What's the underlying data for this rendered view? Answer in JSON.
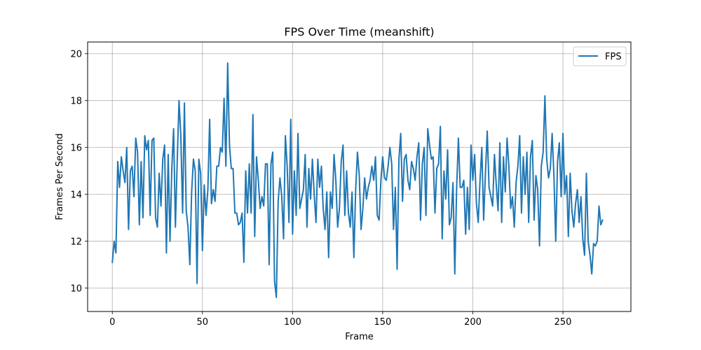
{
  "chart_data": {
    "type": "line",
    "title": "FPS Over Time (meanshift)",
    "xlabel": "Frame",
    "ylabel": "Frames Per Second",
    "xlim": [
      -13.7,
      287.7
    ],
    "ylim": [
      9.0,
      20.5
    ],
    "xticks": [
      0,
      50,
      100,
      150,
      200,
      250
    ],
    "yticks": [
      10,
      12,
      14,
      16,
      18,
      20
    ],
    "grid": true,
    "legend": "top-right",
    "series": [
      {
        "name": "FPS",
        "color": "#1f77b4",
        "x_start": 0,
        "x_step": 1,
        "values": [
          11.1,
          12.0,
          11.5,
          15.4,
          14.3,
          15.6,
          15.0,
          14.5,
          16.0,
          12.5,
          15.0,
          15.2,
          13.9,
          16.4,
          15.8,
          12.7,
          15.4,
          13.0,
          16.5,
          15.9,
          16.3,
          13.1,
          16.3,
          16.4,
          13.0,
          12.6,
          14.9,
          13.5,
          15.5,
          16.1,
          11.5,
          15.7,
          12.0,
          15.1,
          16.8,
          12.6,
          15.4,
          18.0,
          16.5,
          13.2,
          17.9,
          13.3,
          12.6,
          11.0,
          14.1,
          15.5,
          15.0,
          10.2,
          15.5,
          14.9,
          11.6,
          14.4,
          13.1,
          14.2,
          17.2,
          13.6,
          14.2,
          13.7,
          15.2,
          15.2,
          16.0,
          15.8,
          18.1,
          15.2,
          19.6,
          16.1,
          15.1,
          15.1,
          13.2,
          13.2,
          12.7,
          12.8,
          13.2,
          11.1,
          15.0,
          13.2,
          15.3,
          13.2,
          17.4,
          12.2,
          15.6,
          14.6,
          13.4,
          13.9,
          13.5,
          15.3,
          15.3,
          11.0,
          15.3,
          15.8,
          10.3,
          9.6,
          13.7,
          14.7,
          13.9,
          12.1,
          16.5,
          15.2,
          12.8,
          17.2,
          12.3,
          15.0,
          13.1,
          16.6,
          13.4,
          13.8,
          14.2,
          15.7,
          12.6,
          15.1,
          13.8,
          15.5,
          14.0,
          12.8,
          15.5,
          14.3,
          15.2,
          13.4,
          12.5,
          14.1,
          11.3,
          14.1,
          13.4,
          15.7,
          14.6,
          12.6,
          13.4,
          15.4,
          16.1,
          13.1,
          15.0,
          13.2,
          12.6,
          14.1,
          11.3,
          14.2,
          15.8,
          14.8,
          12.5,
          13.4,
          14.7,
          13.8,
          14.3,
          14.6,
          15.2,
          14.6,
          15.6,
          13.1,
          12.9,
          14.6,
          15.6,
          14.7,
          14.6,
          15.2,
          16.0,
          15.3,
          12.5,
          14.3,
          10.8,
          15.5,
          16.6,
          13.7,
          15.5,
          15.7,
          14.6,
          14.2,
          15.4,
          15.1,
          14.6,
          15.6,
          16.2,
          12.9,
          15.3,
          16.0,
          13.1,
          16.8,
          16.1,
          15.5,
          15.6,
          13.2,
          15.1,
          15.3,
          16.9,
          12.1,
          15.0,
          13.8,
          15.9,
          12.7,
          13.0,
          14.5,
          10.6,
          14.2,
          16.4,
          14.3,
          14.3,
          14.6,
          12.3,
          14.3,
          12.5,
          16.1,
          14.6,
          15.7,
          13.6,
          12.8,
          14.6,
          16.0,
          12.9,
          14.9,
          16.7,
          14.3,
          13.9,
          13.5,
          15.7,
          14.4,
          13.3,
          16.2,
          12.8,
          15.6,
          14.1,
          16.4,
          15.2,
          13.4,
          13.9,
          12.6,
          14.5,
          15.2,
          16.5,
          13.2,
          15.6,
          14.0,
          15.8,
          12.8,
          15.6,
          16.3,
          12.9,
          14.8,
          14.2,
          11.8,
          15.2,
          15.8,
          18.2,
          15.5,
          14.7,
          15.1,
          16.6,
          14.8,
          12.0,
          15.4,
          16.2,
          13.9,
          16.6,
          14.0,
          14.8,
          12.2,
          14.9,
          13.3,
          12.6,
          13.6,
          14.2,
          12.8,
          13.9,
          12.1,
          11.4,
          14.9,
          12.0,
          11.4,
          10.6,
          11.9,
          11.8,
          12.0,
          13.5,
          12.7,
          12.9
        ]
      }
    ]
  }
}
